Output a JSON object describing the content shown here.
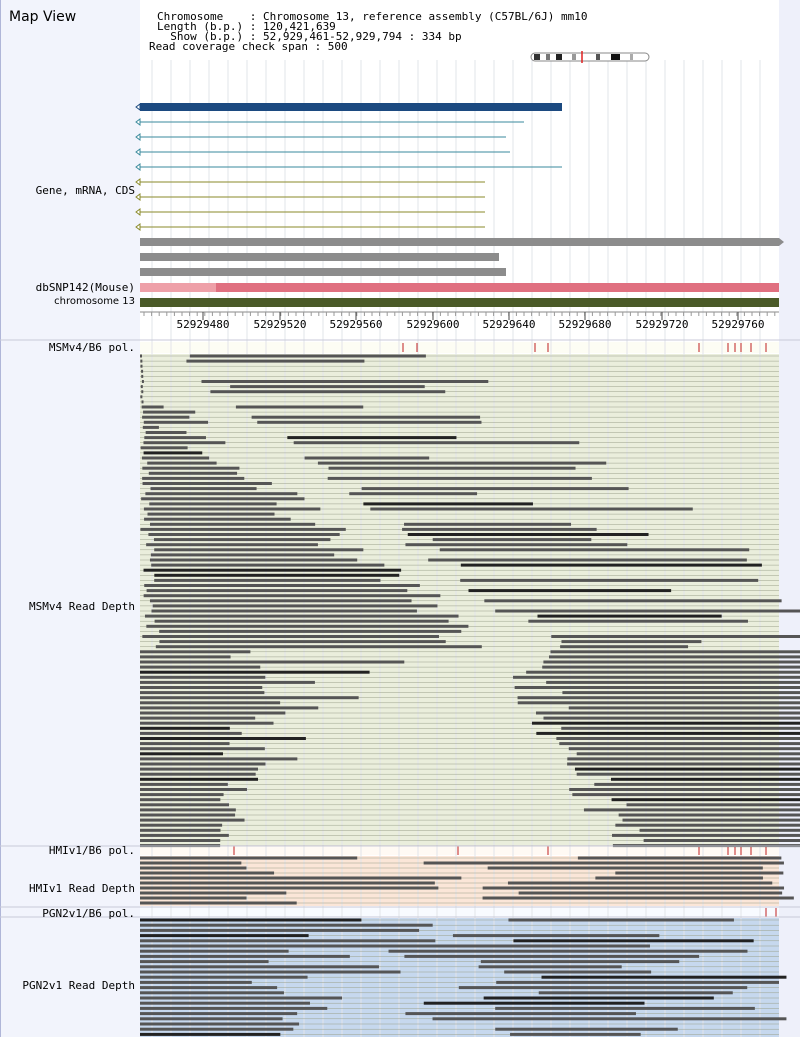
{
  "app": {
    "title": "Map View"
  },
  "info": {
    "chromosome_line": "Chromosome    : Chromosome 13, reference assembly (C57BL/6J) mm10",
    "length_line": "Length (b.p.) : 120,421,639",
    "show_line": "  Show (b.p.) : 52,929,461-52,929,794 : 334 bp",
    "coverage_line": "Read coverage check span : 500"
  },
  "tracks": {
    "gene": "Gene, mRNA, CDS",
    "dbsnp": "dbSNP142(Mouse)",
    "chromosome": "chromosome 13",
    "msm_pol": "MSMv4/B6 pol.",
    "msm_depth": "MSMv4 Read Depth",
    "hmi_pol": "HMIv1/B6 pol.",
    "hmi_depth": "HMIv1 Read Depth",
    "pgn_pol": "PGN2v1/B6 pol.",
    "pgn_depth": "PGN2v1 Read Depth"
  },
  "ruler": {
    "ticks": [
      "52929480",
      "52929520",
      "52929560",
      "52929600",
      "52929640",
      "52929680",
      "52929720",
      "52929760"
    ]
  },
  "colors": {
    "gene_blue": "#1c4a80",
    "mrna_teal": "#3a8a9c",
    "cds_olive": "#8a8a2a",
    "gray_bar": "#8c8c8c",
    "dbsnp_pink": "#e07080",
    "chrom_green": "#4a5a28",
    "msm_bg": "#eaeedc",
    "hmi_bg": "#fbe6d8",
    "pgn_bg": "#c6d8ee",
    "read_dark": "#555555",
    "snp_red": "#c02020"
  }
}
